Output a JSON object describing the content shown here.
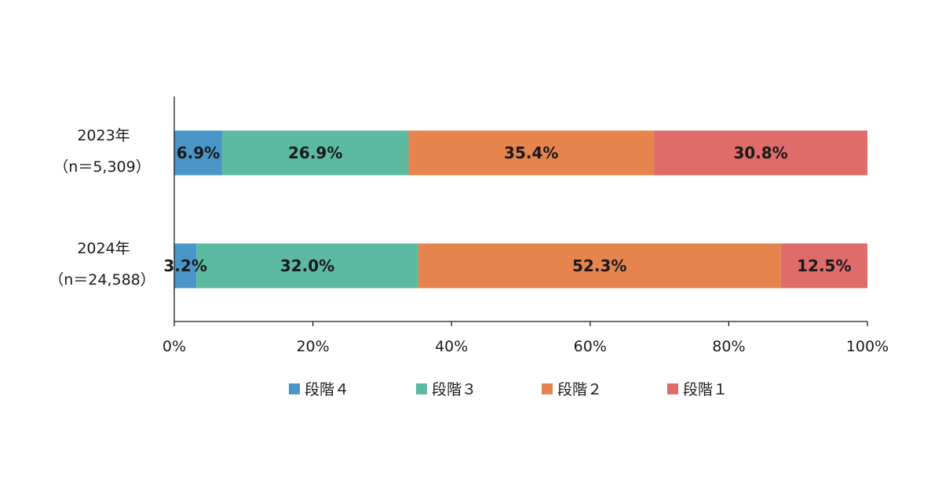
{
  "chart_data": {
    "type": "bar",
    "orientation": "horizontal",
    "stacked": true,
    "categories": [
      {
        "year": "2023年",
        "n": "（n＝5,309）"
      },
      {
        "year": "2024年",
        "n": "（n＝24,588）"
      }
    ],
    "series": [
      {
        "name": "段階４",
        "color": "#4a96c9",
        "values": [
          6.9,
          3.2
        ],
        "labels": [
          "6.9%",
          "3.2%"
        ]
      },
      {
        "name": "段階３",
        "color": "#5cb9a2",
        "values": [
          26.9,
          32.0
        ],
        "labels": [
          "26.9%",
          "32.0%"
        ]
      },
      {
        "name": "段階２",
        "color": "#e6844e",
        "values": [
          35.4,
          52.3
        ],
        "labels": [
          "35.4%",
          "52.3%"
        ]
      },
      {
        "name": "段階１",
        "color": "#e06b6b",
        "values": [
          30.8,
          12.5
        ],
        "labels": [
          "30.8%",
          "12.5%"
        ]
      }
    ],
    "xlim": [
      0,
      100
    ],
    "xticks": [
      "0%",
      "20%",
      "40%",
      "60%",
      "80%",
      "100%"
    ],
    "grid": false,
    "legend_position": "bottom"
  }
}
